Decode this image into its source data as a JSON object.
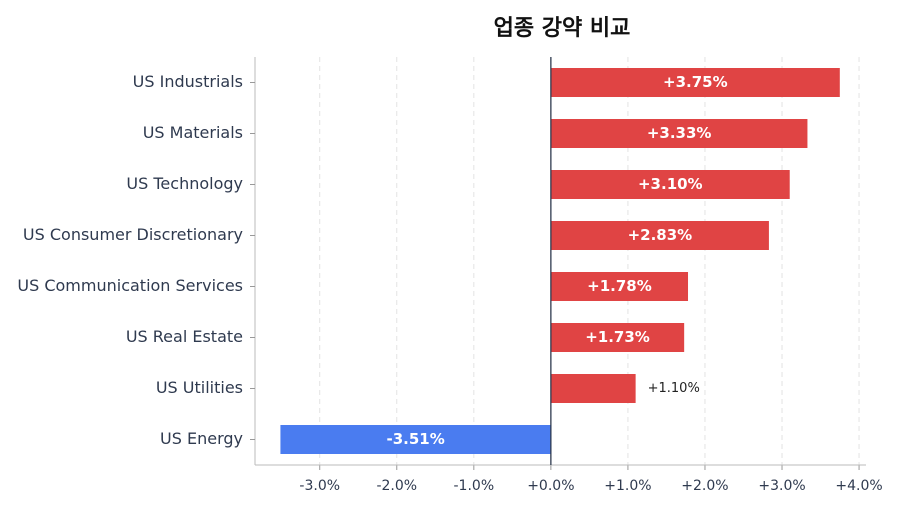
{
  "chart_data": {
    "type": "hbar",
    "title": "업종 강약 비교",
    "categories": [
      "US Industrials",
      "US Materials",
      "US Technology",
      "US Consumer Discretionary",
      "US Communication Services",
      "US Real Estate",
      "US Utilities",
      "US Energy"
    ],
    "values": [
      3.75,
      3.33,
      3.1,
      2.83,
      1.78,
      1.73,
      1.1,
      -3.51
    ],
    "value_labels": [
      "+3.75%",
      "+3.33%",
      "+3.10%",
      "+2.83%",
      "+1.78%",
      "+1.73%",
      "+1.10%",
      "-3.51%"
    ],
    "positive_color": "#e04444",
    "negative_color": "#4a7cf0",
    "xlim": [
      -3.84,
      4.09
    ],
    "xticks": [
      {
        "value": -3,
        "label": "-3.0%"
      },
      {
        "value": -2,
        "label": "-2.0%"
      },
      {
        "value": -1,
        "label": "-1.0%"
      },
      {
        "value": 0,
        "label": "+0.0%"
      },
      {
        "value": 1,
        "label": "+1.0%"
      },
      {
        "value": 2,
        "label": "+2.0%"
      },
      {
        "value": 3,
        "label": "+3.0%"
      },
      {
        "value": 4,
        "label": "+4.0%"
      }
    ],
    "grid": true
  }
}
